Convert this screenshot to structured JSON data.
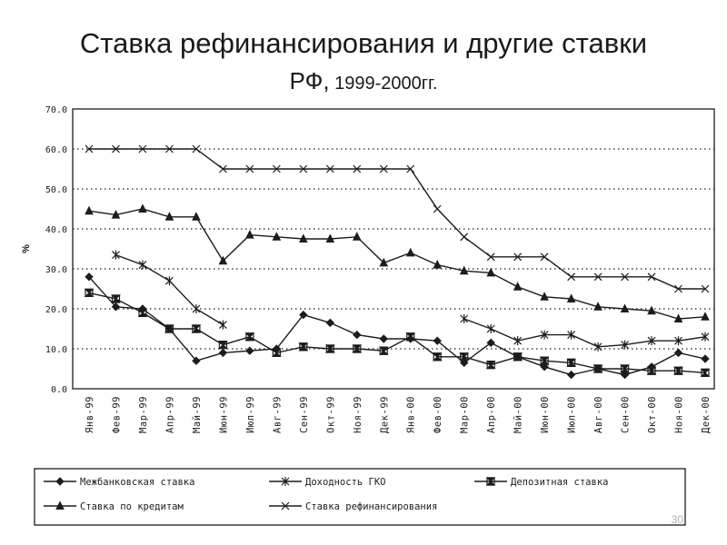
{
  "slide": {
    "title": "Ставка рефинансирования  и другие ставки",
    "subtitle_main": "РФ,",
    "subtitle_years": " 1999-2000гг.",
    "page_number": "30"
  },
  "chart_data": {
    "type": "line",
    "title": "",
    "xlabel": "",
    "ylabel": "%",
    "ylim": [
      0,
      70
    ],
    "yticks": [
      "0.0",
      "10.0",
      "20.0",
      "30.0",
      "40.0",
      "50.0",
      "60.0",
      "70.0"
    ],
    "grid": true,
    "legend_position": "bottom",
    "categories": [
      "Янв-99",
      "Фев-99",
      "Мар-99",
      "Апр-99",
      "Май-99",
      "Июн-99",
      "Июл-99",
      "Авг-99",
      "Сен-99",
      "Окт-99",
      "Ноя-99",
      "Дек-99",
      "Янв-00",
      "Фев-00",
      "Мар-00",
      "Апр-00",
      "Май-00",
      "Июн-00",
      "Июл-00",
      "Авг-00",
      "Сен-00",
      "Окт-00",
      "Ноя-00",
      "Дек-00"
    ],
    "series": [
      {
        "name": "Межбанковская ставка",
        "marker": "diamond",
        "values": [
          28,
          20.5,
          20,
          15,
          7,
          9,
          9.5,
          10,
          18.5,
          16.5,
          13.5,
          12.5,
          12.5,
          12,
          6.5,
          11.5,
          8,
          5.5,
          3.5,
          5,
          3.5,
          5.5,
          9,
          7.5
        ]
      },
      {
        "name": "Доходность ГКО",
        "marker": "asterisk",
        "values": [
          null,
          33.5,
          31,
          27,
          20,
          16,
          null,
          null,
          null,
          null,
          null,
          null,
          null,
          null,
          17.5,
          15,
          12,
          13.5,
          13.5,
          10.5,
          11,
          12,
          12,
          13
        ]
      },
      {
        "name": "Депозитная ставка",
        "marker": "hourglass",
        "values": [
          24,
          22.5,
          19,
          15,
          15,
          11,
          13,
          9,
          10.5,
          10,
          10,
          9.5,
          13,
          8,
          8,
          6,
          8,
          7,
          6.5,
          5,
          5,
          4.5,
          4.5,
          4
        ]
      },
      {
        "name": "Ставка по кредитам",
        "marker": "triangle",
        "values": [
          44.5,
          43.5,
          45,
          43,
          43,
          32,
          38.5,
          38,
          37.5,
          37.5,
          38,
          31.5,
          34,
          31,
          29.5,
          29,
          25.5,
          23,
          22.5,
          20.5,
          20,
          19.5,
          17.5,
          18
        ]
      },
      {
        "name": "Ставка рефинансирования",
        "marker": "cross",
        "values": [
          60,
          60,
          60,
          60,
          60,
          55,
          55,
          55,
          55,
          55,
          55,
          55,
          55,
          45,
          38,
          33,
          33,
          33,
          28,
          28,
          28,
          28,
          25,
          25
        ]
      }
    ]
  }
}
